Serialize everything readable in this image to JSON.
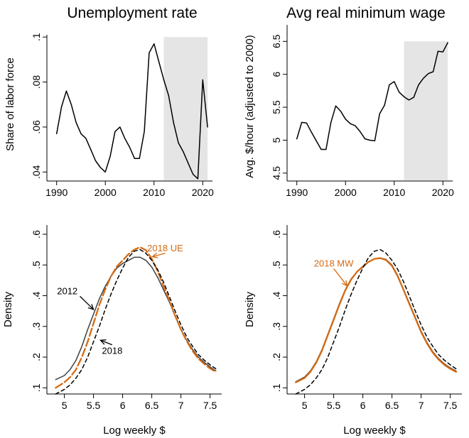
{
  "chart_data": [
    {
      "type": "line",
      "title": "Unemployment rate",
      "xlabel": "",
      "ylabel": "Share of labor force",
      "xlim": [
        1988,
        2022
      ],
      "ylim": [
        0.036,
        0.101
      ],
      "xticks": [
        1990,
        2000,
        2010,
        2020
      ],
      "xtick_labels": [
        "1990",
        "2000",
        "2010",
        "2020"
      ],
      "yticks": [
        0.04,
        0.06,
        0.08,
        0.1
      ],
      "ytick_labels": [
        ".04",
        ".06",
        ".08",
        ".1"
      ],
      "shaded_region": [
        2012,
        2021
      ],
      "shade_color": "#e5e5e5",
      "grid": false,
      "series": [
        {
          "color": "#000000",
          "x": [
            1990,
            1991,
            1992,
            1993,
            1994,
            1995,
            1996,
            1997,
            1998,
            1999,
            2000,
            2001,
            2002,
            2003,
            2004,
            2005,
            2006,
            2007,
            2008,
            2009,
            2010,
            2011,
            2012,
            2013,
            2014,
            2015,
            2016,
            2017,
            2018,
            2019,
            2020,
            2021
          ],
          "y": [
            0.057,
            0.069,
            0.076,
            0.07,
            0.062,
            0.057,
            0.055,
            0.05,
            0.045,
            0.042,
            0.04,
            0.047,
            0.058,
            0.06,
            0.055,
            0.051,
            0.046,
            0.046,
            0.058,
            0.093,
            0.097,
            0.089,
            0.081,
            0.074,
            0.062,
            0.053,
            0.049,
            0.044,
            0.039,
            0.037,
            0.081,
            0.06
          ]
        }
      ]
    },
    {
      "type": "line",
      "title": "Avg real minimum wage",
      "xlabel": "",
      "ylabel": "Avg. $/hour (adjusted to 2000)",
      "xlim": [
        1988,
        2022
      ],
      "ylim": [
        4.38,
        6.6
      ],
      "xticks": [
        1990,
        2000,
        2010,
        2020
      ],
      "xtick_labels": [
        "1990",
        "2000",
        "2010",
        "2020"
      ],
      "yticks": [
        4.5,
        5,
        5.5,
        6,
        6.5
      ],
      "ytick_labels": [
        "4.5",
        "5",
        "5.5",
        "6",
        "6.5"
      ],
      "shaded_region": [
        2012,
        2021
      ],
      "shade_color": "#e5e5e5",
      "grid": false,
      "series": [
        {
          "color": "#000000",
          "x": [
            1990,
            1991,
            1992,
            1993,
            1994,
            1995,
            1996,
            1997,
            1998,
            1999,
            2000,
            2001,
            2002,
            2003,
            2004,
            2005,
            2006,
            2007,
            2008,
            2009,
            2010,
            2011,
            2012,
            2013,
            2014,
            2015,
            2016,
            2017,
            2018,
            2019,
            2020,
            2021
          ],
          "y": [
            5.02,
            5.27,
            5.26,
            5.12,
            4.99,
            4.86,
            4.86,
            5.27,
            5.52,
            5.44,
            5.32,
            5.25,
            5.22,
            5.13,
            5.02,
            5.0,
            4.99,
            5.4,
            5.53,
            5.84,
            5.89,
            5.73,
            5.66,
            5.61,
            5.65,
            5.84,
            5.94,
            6.01,
            6.04,
            6.35,
            6.34,
            6.48
          ]
        }
      ]
    },
    {
      "type": "line",
      "title": "",
      "xlabel": "Log weekly $",
      "ylabel": "Density",
      "xlim": [
        4.7,
        7.7
      ],
      "ylim": [
        0.08,
        0.63
      ],
      "xticks": [
        5,
        5.5,
        6,
        6.5,
        7,
        7.5
      ],
      "xtick_labels": [
        "5",
        "5.5",
        "6",
        "6.5",
        "7",
        "7.5"
      ],
      "yticks": [
        0.1,
        0.2,
        0.3,
        0.4,
        0.5,
        0.6
      ],
      "ytick_labels": [
        ".1",
        ".2",
        ".3",
        ".4",
        ".5",
        ".6"
      ],
      "grid": false,
      "series": [
        {
          "name": "2012",
          "color": "#404040",
          "dash": "solid",
          "x": [
            4.85,
            5.0,
            5.1,
            5.2,
            5.3,
            5.4,
            5.5,
            5.6,
            5.7,
            5.8,
            5.9,
            6.0,
            6.1,
            6.2,
            6.3,
            6.4,
            6.5,
            6.6,
            6.7,
            6.8,
            6.9,
            7.0,
            7.1,
            7.2,
            7.3,
            7.4,
            7.5,
            7.6
          ],
          "y": [
            0.127,
            0.14,
            0.16,
            0.19,
            0.235,
            0.29,
            0.34,
            0.39,
            0.43,
            0.463,
            0.49,
            0.505,
            0.515,
            0.525,
            0.525,
            0.515,
            0.493,
            0.46,
            0.42,
            0.38,
            0.335,
            0.29,
            0.255,
            0.225,
            0.2,
            0.183,
            0.168,
            0.155
          ]
        },
        {
          "name": "2018 UE",
          "color": "#d46a13",
          "dash": "longdash",
          "x": [
            4.85,
            5.0,
            5.1,
            5.2,
            5.3,
            5.4,
            5.5,
            5.6,
            5.7,
            5.8,
            5.9,
            6.0,
            6.1,
            6.2,
            6.3,
            6.4,
            6.5,
            6.6,
            6.7,
            6.8,
            6.9,
            7.0,
            7.1,
            7.2,
            7.3,
            7.4,
            7.5,
            7.6
          ],
          "y": [
            0.1,
            0.118,
            0.135,
            0.16,
            0.2,
            0.25,
            0.31,
            0.37,
            0.42,
            0.463,
            0.495,
            0.515,
            0.535,
            0.55,
            0.558,
            0.548,
            0.52,
            0.48,
            0.432,
            0.385,
            0.335,
            0.29,
            0.252,
            0.22,
            0.195,
            0.178,
            0.163,
            0.152
          ]
        },
        {
          "name": "2018",
          "color": "#000000",
          "dash": "dash",
          "x": [
            4.85,
            5.0,
            5.1,
            5.2,
            5.3,
            5.4,
            5.5,
            5.6,
            5.7,
            5.8,
            5.9,
            6.0,
            6.1,
            6.2,
            6.3,
            6.4,
            6.5,
            6.6,
            6.7,
            6.8,
            6.9,
            7.0,
            7.1,
            7.2,
            7.3,
            7.4,
            7.5,
            7.6
          ],
          "y": [
            0.08,
            0.095,
            0.11,
            0.132,
            0.16,
            0.2,
            0.25,
            0.3,
            0.355,
            0.405,
            0.45,
            0.49,
            0.525,
            0.545,
            0.55,
            0.538,
            0.515,
            0.485,
            0.445,
            0.398,
            0.35,
            0.305,
            0.265,
            0.235,
            0.208,
            0.19,
            0.175,
            0.162
          ]
        }
      ],
      "annotations": [
        {
          "text": "2012",
          "color": "#000000",
          "x": 5.05,
          "y": 0.405,
          "arrow_to": [
            5.5,
            0.355
          ]
        },
        {
          "text": "2018",
          "color": "#000000",
          "x": 5.82,
          "y": 0.21,
          "arrow_to": [
            5.62,
            0.255
          ]
        },
        {
          "text": "2018 UE",
          "color": "#d46a13",
          "x": 6.73,
          "y": 0.545,
          "arrow_to": [
            6.51,
            0.527
          ]
        }
      ]
    },
    {
      "type": "line",
      "title": "",
      "xlabel": "Log weekly $",
      "ylabel": "Density",
      "xlim": [
        4.7,
        7.7
      ],
      "ylim": [
        0.08,
        0.63
      ],
      "xticks": [
        5,
        5.5,
        6,
        6.5,
        7,
        7.5
      ],
      "xtick_labels": [
        "5",
        "5.5",
        "6",
        "6.5",
        "7",
        "7.5"
      ],
      "yticks": [
        0.1,
        0.2,
        0.3,
        0.4,
        0.5,
        0.6
      ],
      "ytick_labels": [
        ".1",
        ".2",
        ".3",
        ".4",
        ".5",
        ".6"
      ],
      "grid": false,
      "series": [
        {
          "name": "2012",
          "color": "#404040",
          "dash": "solid",
          "x": [
            4.85,
            5.0,
            5.1,
            5.2,
            5.3,
            5.4,
            5.5,
            5.6,
            5.7,
            5.8,
            5.9,
            6.0,
            6.1,
            6.2,
            6.3,
            6.4,
            6.5,
            6.6,
            6.7,
            6.8,
            6.9,
            7.0,
            7.1,
            7.2,
            7.3,
            7.4,
            7.5,
            7.6
          ],
          "y": [
            0.12,
            0.135,
            0.155,
            0.185,
            0.225,
            0.275,
            0.325,
            0.375,
            0.42,
            0.455,
            0.478,
            0.493,
            0.51,
            0.52,
            0.523,
            0.518,
            0.5,
            0.465,
            0.42,
            0.375,
            0.33,
            0.285,
            0.248,
            0.218,
            0.195,
            0.178,
            0.165,
            0.155
          ]
        },
        {
          "name": "2018 MW",
          "color": "#d46a13",
          "dash": "solid",
          "x": [
            4.85,
            5.0,
            5.1,
            5.2,
            5.3,
            5.4,
            5.5,
            5.6,
            5.7,
            5.8,
            5.9,
            6.0,
            6.1,
            6.2,
            6.3,
            6.4,
            6.5,
            6.6,
            6.7,
            6.8,
            6.9,
            7.0,
            7.1,
            7.2,
            7.3,
            7.4,
            7.5,
            7.6
          ],
          "y": [
            0.118,
            0.132,
            0.152,
            0.182,
            0.222,
            0.272,
            0.322,
            0.372,
            0.418,
            0.453,
            0.478,
            0.495,
            0.51,
            0.52,
            0.522,
            0.516,
            0.497,
            0.463,
            0.418,
            0.372,
            0.327,
            0.282,
            0.245,
            0.215,
            0.192,
            0.175,
            0.162,
            0.152
          ]
        },
        {
          "name": "2018",
          "color": "#000000",
          "dash": "dash",
          "x": [
            4.85,
            5.0,
            5.1,
            5.2,
            5.3,
            5.4,
            5.5,
            5.6,
            5.7,
            5.8,
            5.9,
            6.0,
            6.1,
            6.2,
            6.3,
            6.4,
            6.5,
            6.6,
            6.7,
            6.8,
            6.9,
            7.0,
            7.1,
            7.2,
            7.3,
            7.4,
            7.5,
            7.6
          ],
          "y": [
            0.08,
            0.095,
            0.11,
            0.132,
            0.16,
            0.2,
            0.25,
            0.3,
            0.355,
            0.405,
            0.45,
            0.49,
            0.525,
            0.545,
            0.55,
            0.538,
            0.515,
            0.485,
            0.445,
            0.398,
            0.35,
            0.305,
            0.265,
            0.235,
            0.208,
            0.19,
            0.175,
            0.162
          ]
        }
      ],
      "annotations": [
        {
          "text": "2018 MW",
          "color": "#d46a13",
          "x": 5.5,
          "y": 0.495,
          "arrow_to": [
            5.73,
            0.432
          ]
        }
      ]
    }
  ]
}
